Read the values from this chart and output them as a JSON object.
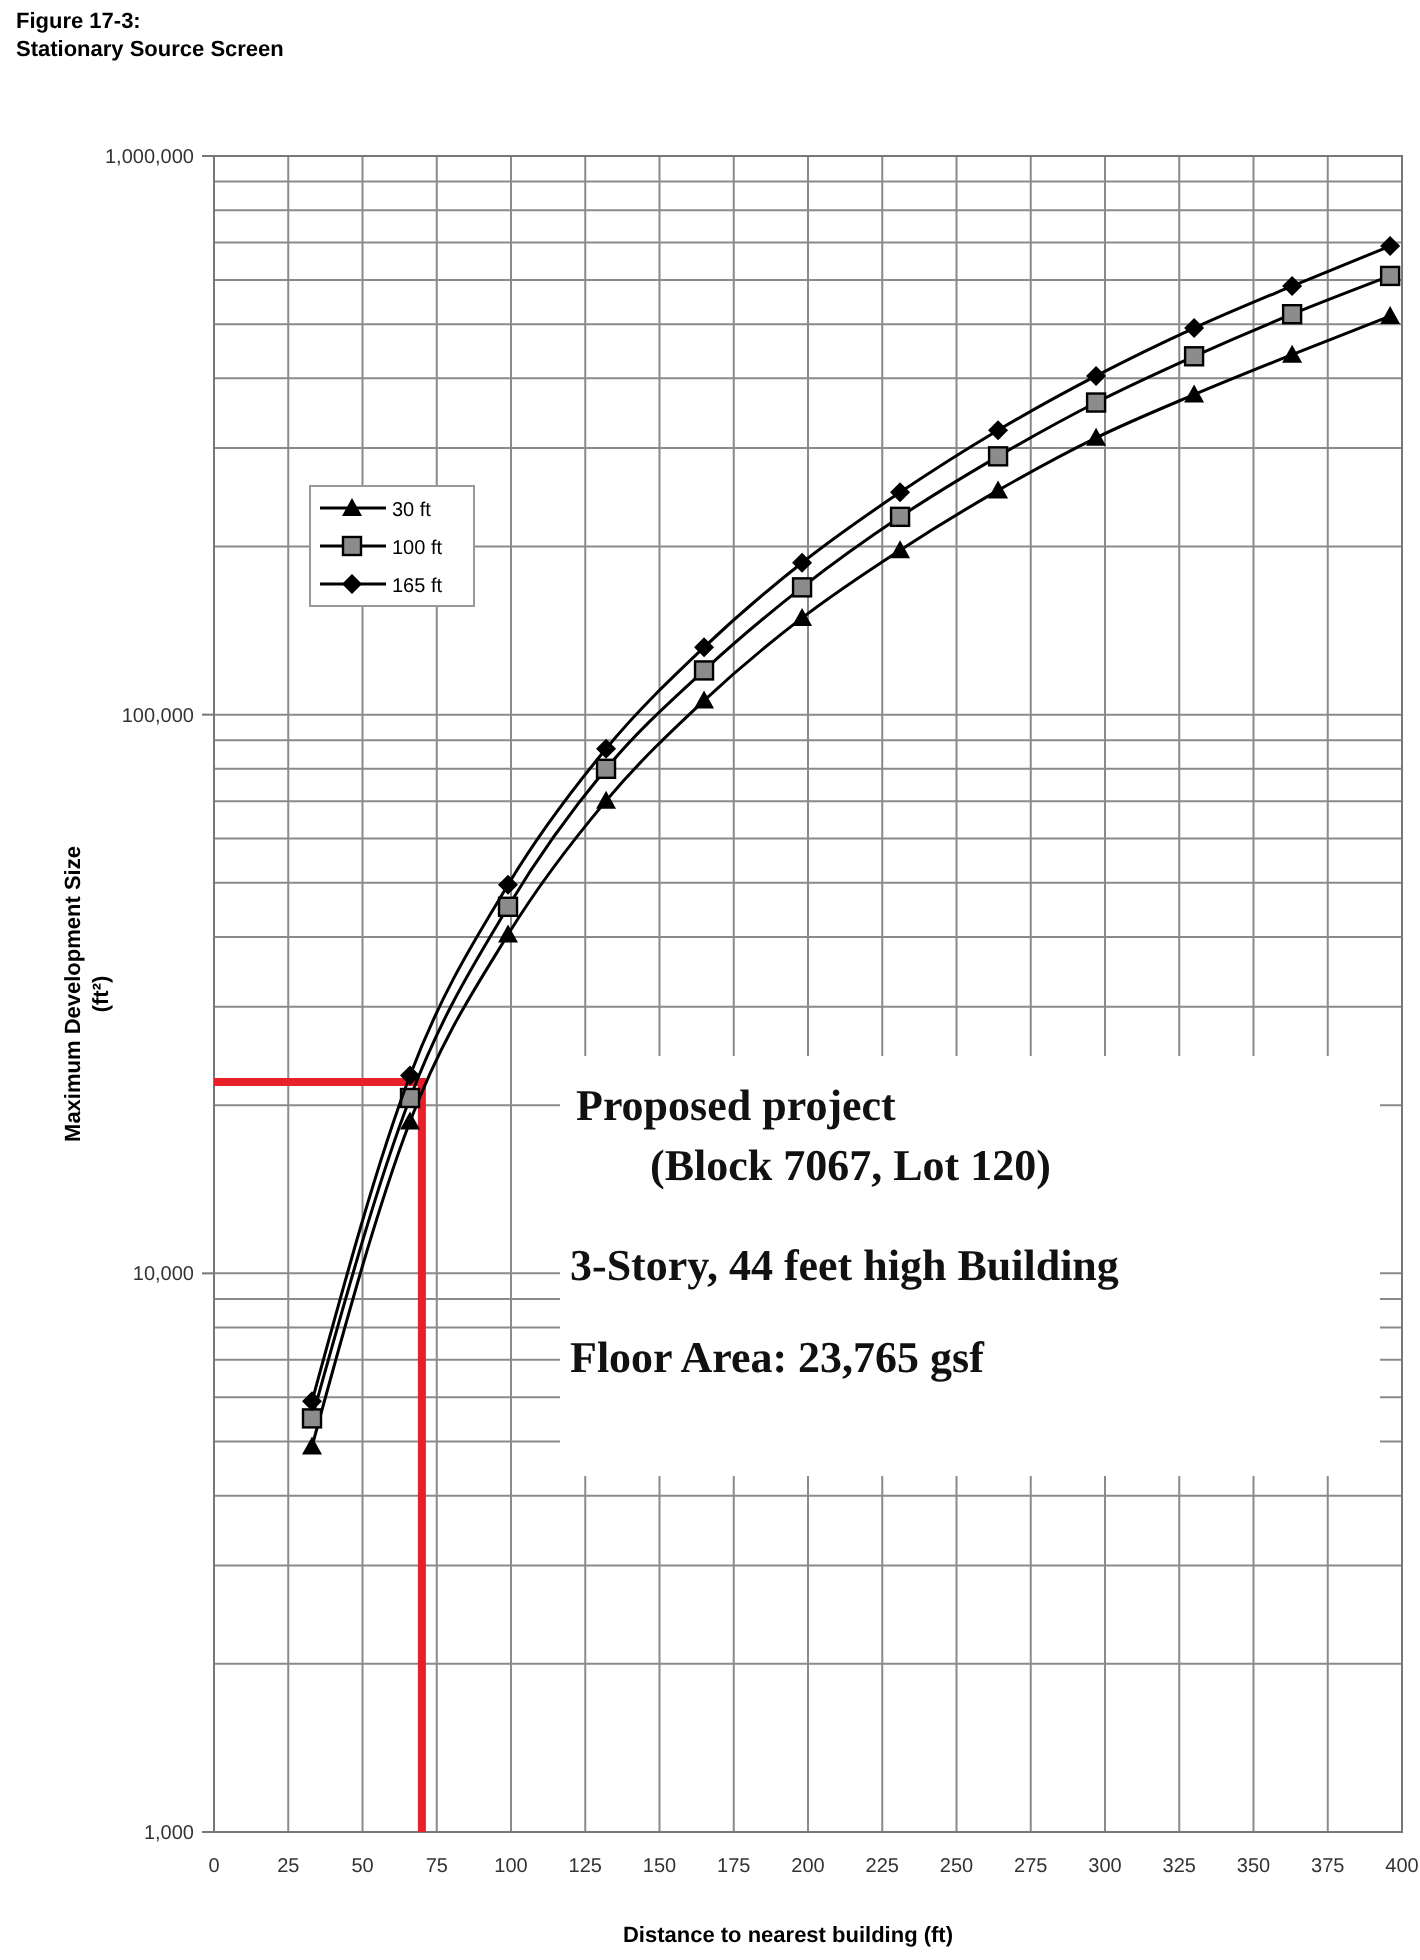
{
  "chart_data": {
    "type": "line",
    "title": "Figure 17-3:",
    "subtitle": "Stationary Source Screen",
    "xlabel": "Distance to nearest building (ft)",
    "ylabel": "Maximum Development Size\n(ft²)",
    "x": [
      33,
      66,
      99,
      132,
      165,
      198,
      231,
      264,
      297,
      330,
      363,
      396
    ],
    "series": [
      {
        "name": "30 ft",
        "color": "#000000",
        "marker": "triangle",
        "values": [
          4900,
          18700,
          40400,
          70100,
          106000,
          149000,
          197000,
          252000,
          313000,
          374000,
          441000,
          517000
        ]
      },
      {
        "name": "100 ft",
        "color": "#000000",
        "marker": "square",
        "values": [
          5500,
          20600,
          45300,
          80000,
          120000,
          169000,
          226000,
          290000,
          362000,
          438000,
          521000,
          610000
        ]
      },
      {
        "name": "165 ft",
        "color": "#000000",
        "marker": "diamond",
        "values": [
          5900,
          22600,
          49600,
          86900,
          132000,
          187000,
          250000,
          323000,
          404000,
          492000,
          585000,
          690000
        ]
      }
    ],
    "ref_lines": [
      {
        "axis": "y",
        "value": 22000,
        "color": "#e8202a"
      },
      {
        "axis": "x",
        "value": 70,
        "color": "#e8202a"
      }
    ],
    "log": "y",
    "xlim": [
      0,
      400
    ],
    "ylim": [
      1000,
      1000000
    ],
    "xticks": [
      0,
      25,
      50,
      75,
      100,
      125,
      150,
      175,
      200,
      225,
      250,
      275,
      300,
      325,
      350,
      375,
      400
    ],
    "yticks": [
      {
        "value": 1000,
        "label": "1,000"
      },
      {
        "value": 2000,
        "label": null
      },
      {
        "value": 3000,
        "label": null
      },
      {
        "value": 4000,
        "label": null
      },
      {
        "value": 5000,
        "label": null
      },
      {
        "value": 6000,
        "label": null
      },
      {
        "value": 7000,
        "label": null
      },
      {
        "value": 8000,
        "label": null
      },
      {
        "value": 9000,
        "label": null
      },
      {
        "value": 10000,
        "label": "10,000"
      },
      {
        "value": 20000,
        "label": null
      },
      {
        "value": 30000,
        "label": null
      },
      {
        "value": 40000,
        "label": null
      },
      {
        "value": 50000,
        "label": null
      },
      {
        "value": 60000,
        "label": null
      },
      {
        "value": 70000,
        "label": null
      },
      {
        "value": 80000,
        "label": null
      },
      {
        "value": 90000,
        "label": null
      },
      {
        "value": 100000,
        "label": "100,000"
      },
      {
        "value": 200000,
        "label": null
      },
      {
        "value": 300000,
        "label": null
      },
      {
        "value": 400000,
        "label": null
      },
      {
        "value": 500000,
        "label": null
      },
      {
        "value": 600000,
        "label": null
      },
      {
        "value": 700000,
        "label": null
      },
      {
        "value": 800000,
        "label": null
      },
      {
        "value": 900000,
        "label": null
      },
      {
        "value": 1000000,
        "label": "1,000,000"
      }
    ],
    "grid": true,
    "legend": "top left",
    "line_style": "solid",
    "annotations": [
      "Proposed project",
      "(Block 7067, Lot 120)",
      "3-Story, 44 feet high Building",
      "Floor Area: 23,765 gsf"
    ]
  }
}
